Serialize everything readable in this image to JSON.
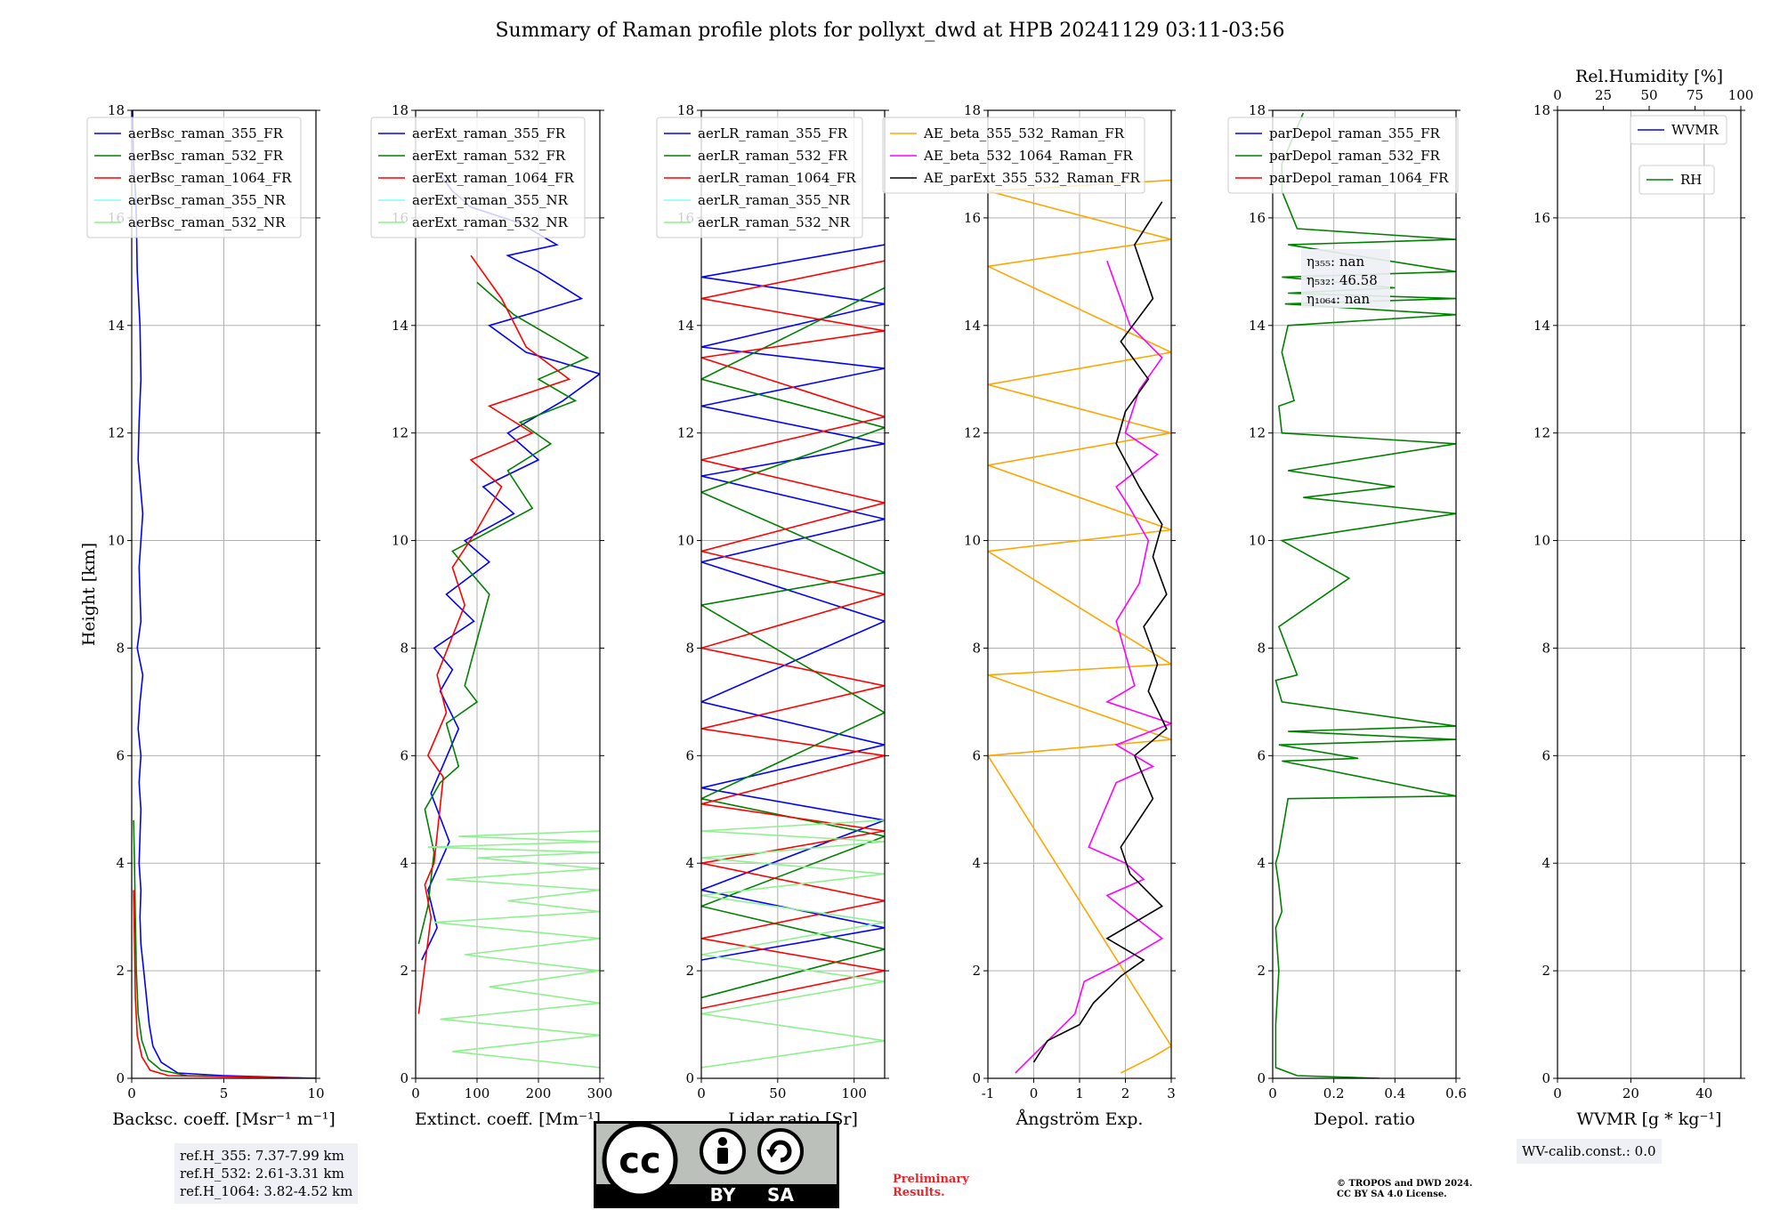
{
  "title": "Summary of Raman profile plots for pollyxt_dwd at HPB 20241129 03:11-03:56",
  "height_axis": {
    "label": "Height [km]",
    "range": [
      0,
      18
    ],
    "ticks": [
      0,
      2,
      4,
      6,
      8,
      10,
      12,
      14,
      16,
      18
    ]
  },
  "chart_data": [
    {
      "type": "line",
      "xlabel": "Backsc. coeff. [Msr⁻¹ m⁻¹]",
      "xlim": [
        0,
        10
      ],
      "xticks": [
        0,
        5,
        10
      ],
      "legend_position": "upper-left",
      "series": [
        {
          "name": "aerBsc_raman_355_FR",
          "color": "#0000ff",
          "x": [
            10.0,
            5.0,
            2.5,
            1.6,
            1.15,
            0.95,
            0.8,
            0.65,
            0.5,
            0.45,
            0.5,
            0.4,
            0.45,
            0.5,
            0.4,
            0.5,
            0.35,
            0.45,
            0.6,
            0.3,
            0.5,
            0.4,
            0.6,
            0.35,
            0.4,
            0.5,
            0.45,
            0.3,
            0.25,
            0.2,
            0.1,
            0.05
          ],
          "y": [
            0.0,
            0.05,
            0.1,
            0.3,
            0.6,
            1.0,
            1.5,
            2.0,
            2.5,
            3.0,
            3.5,
            4.0,
            4.5,
            5.0,
            5.5,
            6.0,
            6.5,
            7.0,
            7.5,
            8.0,
            8.5,
            9.5,
            10.5,
            11.5,
            12.2,
            13.0,
            14.0,
            15.0,
            16.0,
            16.5,
            17.0,
            18.0
          ]
        },
        {
          "name": "aerBsc_raman_532_FR",
          "color": "#008000",
          "x": [
            10.0,
            3.0,
            1.6,
            0.9,
            0.55,
            0.35,
            0.25,
            0.2,
            0.15,
            0.1
          ],
          "y": [
            0.0,
            0.05,
            0.15,
            0.35,
            0.7,
            1.2,
            2.0,
            3.0,
            4.0,
            4.8
          ]
        },
        {
          "name": "aerBsc_raman_1064_FR",
          "color": "#ff0000",
          "x": [
            10.0,
            2.0,
            1.0,
            0.55,
            0.3,
            0.2,
            0.15,
            0.1
          ],
          "y": [
            0.0,
            0.05,
            0.15,
            0.4,
            0.8,
            1.5,
            2.5,
            3.5
          ]
        },
        {
          "name": "aerBsc_raman_355_NR",
          "color": "#7fffff",
          "x": [],
          "y": []
        },
        {
          "name": "aerBsc_raman_532_NR",
          "color": "#8ef08e",
          "x": [],
          "y": []
        }
      ]
    },
    {
      "type": "line",
      "xlabel": "Extinct. coeff. [Mm⁻¹]",
      "xlim": [
        0,
        300
      ],
      "xticks": [
        0,
        100,
        200,
        300
      ],
      "legend_position": "upper-left",
      "series": [
        {
          "name": "aerExt_raman_355_FR",
          "color": "#0000ff",
          "x": [
            10,
            35,
            20,
            55,
            25,
            70,
            40,
            60,
            30,
            95,
            50,
            120,
            80,
            160,
            110,
            200,
            150,
            240,
            300,
            180,
            120,
            270,
            200,
            150,
            230,
            170,
            90,
            60,
            40
          ],
          "y": [
            2.2,
            2.8,
            3.5,
            4.4,
            5.3,
            6.5,
            7.2,
            7.6,
            8.0,
            8.5,
            9.0,
            9.6,
            10.0,
            10.5,
            11.0,
            11.5,
            12.0,
            12.6,
            13.1,
            13.5,
            14.0,
            14.5,
            15.0,
            15.3,
            15.5,
            15.9,
            16.2,
            16.5,
            16.8
          ]
        },
        {
          "name": "aerExt_raman_532_FR",
          "color": "#008000",
          "x": [
            5,
            20,
            30,
            15,
            40,
            70,
            50,
            100,
            80,
            120,
            60,
            190,
            150,
            220,
            170,
            260,
            200,
            280,
            160,
            100
          ],
          "y": [
            2.5,
            3.2,
            4.2,
            5.0,
            5.5,
            5.8,
            6.6,
            7.0,
            7.3,
            9.0,
            9.8,
            10.6,
            11.3,
            11.8,
            12.2,
            12.6,
            13.0,
            13.4,
            14.2,
            14.8
          ]
        },
        {
          "name": "aerExt_raman_1064_FR",
          "color": "#ff0000",
          "x": [
            5,
            25,
            15,
            30,
            45,
            20,
            50,
            35,
            80,
            60,
            100,
            140,
            90,
            190,
            120,
            250,
            180,
            140,
            90
          ],
          "y": [
            1.2,
            3.0,
            3.6,
            4.0,
            5.6,
            6.0,
            6.8,
            7.5,
            8.8,
            9.5,
            10.2,
            11.0,
            11.5,
            12.0,
            12.5,
            13.0,
            13.6,
            14.5,
            15.3
          ]
        },
        {
          "name": "aerExt_raman_355_NR",
          "color": "#7fffff",
          "x": [],
          "y": []
        },
        {
          "name": "aerExt_raman_532_NR",
          "color": "#8ef08e",
          "x": [
            300,
            60,
            300,
            40,
            300,
            120,
            300,
            80,
            300,
            30,
            300,
            150,
            300,
            50,
            300,
            100,
            300,
            20,
            300,
            70,
            300
          ],
          "y": [
            0.2,
            0.5,
            0.8,
            1.1,
            1.4,
            1.7,
            2.0,
            2.3,
            2.6,
            2.9,
            3.1,
            3.3,
            3.5,
            3.7,
            3.9,
            4.1,
            4.2,
            4.3,
            4.4,
            4.5,
            4.6
          ]
        }
      ]
    },
    {
      "type": "line",
      "xlabel": "Lidar ratio [Sr]",
      "xlim": [
        0,
        120
      ],
      "xticks": [
        0,
        50,
        100
      ],
      "legend_position": "upper-left",
      "series": [
        {
          "name": "aerLR_raman_355_FR",
          "color": "#0000ff",
          "x": [
            0,
            120,
            0,
            120,
            0,
            120,
            0,
            120,
            0,
            120,
            0,
            120,
            0,
            120,
            0,
            120,
            0,
            120
          ],
          "y": [
            2.2,
            2.8,
            3.5,
            4.8,
            5.4,
            6.2,
            7.0,
            8.5,
            9.6,
            10.4,
            11.2,
            11.8,
            12.5,
            13.2,
            13.6,
            14.4,
            14.9,
            15.5
          ]
        },
        {
          "name": "aerLR_raman_532_FR",
          "color": "#008000",
          "x": [
            0,
            120,
            0,
            120,
            0,
            120,
            0,
            120,
            0,
            120,
            0,
            120
          ],
          "y": [
            1.5,
            2.4,
            3.2,
            4.5,
            5.2,
            6.8,
            8.8,
            9.4,
            10.9,
            12.1,
            13.0,
            14.7
          ]
        },
        {
          "name": "aerLR_raman_1064_FR",
          "color": "#ff0000",
          "x": [
            0,
            120,
            0,
            120,
            0,
            120,
            0,
            120,
            0,
            120,
            0,
            120,
            0,
            120,
            0,
            120,
            0,
            120,
            0,
            120
          ],
          "y": [
            1.3,
            2.0,
            2.6,
            3.3,
            4.0,
            4.6,
            5.1,
            6.0,
            6.5,
            7.3,
            8.0,
            9.0,
            9.8,
            10.7,
            11.5,
            12.3,
            13.4,
            13.9,
            14.5,
            15.2
          ]
        },
        {
          "name": "aerLR_raman_355_NR",
          "color": "#7fffff",
          "x": [],
          "y": []
        },
        {
          "name": "aerLR_raman_532_NR",
          "color": "#8ef08e",
          "x": [
            0,
            120,
            0,
            120,
            0,
            120,
            0,
            120,
            0,
            120,
            0,
            120
          ],
          "y": [
            0.2,
            0.7,
            1.2,
            1.8,
            2.3,
            2.9,
            3.4,
            3.8,
            4.1,
            4.4,
            4.6,
            4.8
          ]
        }
      ]
    },
    {
      "type": "line",
      "xlabel": "Ångström Exp.",
      "xlim": [
        -1,
        3
      ],
      "xticks": [
        -1,
        0,
        1,
        2,
        3
      ],
      "legend_position": "upper-left",
      "series": [
        {
          "name": "AE_beta_355_532_Raman_FR",
          "color": "#ffa500",
          "x": [
            1.9,
            2.6,
            3.0,
            -1,
            3,
            -1,
            3,
            -1,
            3,
            -1,
            3,
            -1,
            3,
            -1,
            3,
            -1,
            3
          ],
          "y": [
            0.1,
            0.4,
            0.6,
            6.0,
            6.3,
            7.5,
            7.7,
            9.8,
            10.2,
            11.4,
            12.0,
            12.9,
            13.5,
            15.1,
            15.6,
            16.5,
            16.7
          ]
        },
        {
          "name": "AE_beta_532_1064_Raman_FR",
          "color": "#ff00ff",
          "x": [
            -0.4,
            0.9,
            1.1,
            1.8,
            2.8,
            2.2,
            1.6,
            2.4,
            2.0,
            1.2,
            1.8,
            2.6,
            1.8,
            3.0,
            1.6,
            2.2,
            1.8,
            2.3,
            2.5,
            2.1,
            1.8,
            2.7,
            2.0,
            2.3,
            2.8,
            2.1,
            1.6
          ],
          "y": [
            0.1,
            1.2,
            1.8,
            2.1,
            2.6,
            3.0,
            3.4,
            3.7,
            4.0,
            4.3,
            5.5,
            5.8,
            6.2,
            6.6,
            7.0,
            7.3,
            8.5,
            9.2,
            10.0,
            10.6,
            11.0,
            11.6,
            12.0,
            12.8,
            13.4,
            14.0,
            15.2
          ]
        },
        {
          "name": "AE_parExt_355_532_Raman_FR",
          "color": "#000000",
          "x": [
            0.0,
            0.3,
            1.0,
            1.3,
            1.9,
            2.4,
            1.6,
            2.8,
            2.1,
            1.9,
            2.6,
            2.2,
            2.9,
            2.5,
            2.7,
            2.4,
            2.9,
            2.6,
            2.8,
            2.3,
            1.8,
            2.0,
            2.5,
            1.9,
            2.6,
            2.2,
            2.8
          ],
          "y": [
            0.3,
            0.7,
            1.0,
            1.4,
            1.9,
            2.2,
            2.6,
            3.2,
            3.8,
            4.3,
            5.2,
            6.0,
            6.5,
            7.2,
            7.7,
            8.4,
            9.0,
            9.7,
            10.3,
            11.0,
            11.8,
            12.4,
            13.0,
            13.7,
            14.5,
            15.5,
            16.3
          ]
        }
      ],
      "annotations": []
    },
    {
      "type": "line",
      "xlabel": "Depol. ratio",
      "xlim": [
        0.0,
        0.6
      ],
      "xticks": [
        0.0,
        0.2,
        0.4,
        0.6
      ],
      "legend_position": "upper-left",
      "annotations": [
        "η₃₅₅: nan",
        "η₅₃₂: 46.58",
        "η₁₀₆₄: nan"
      ],
      "series": [
        {
          "name": "parDepol_raman_355_FR",
          "color": "#0000ff",
          "x": [],
          "y": []
        },
        {
          "name": "parDepol_raman_532_FR",
          "color": "#008000",
          "x": [
            0.35,
            0.08,
            0.01,
            0.01,
            0.02,
            0.01,
            0.03,
            0.02,
            0.01,
            0.02,
            0.05,
            0.6,
            0.03,
            0.28,
            0.02,
            0.6,
            0.05,
            0.6,
            0.03,
            0.01,
            0.08,
            0.02,
            0.25,
            0.03,
            0.6,
            0.1,
            0.4,
            0.05,
            0.6,
            0.03,
            0.02,
            0.07,
            0.03,
            0.05,
            0.6,
            0.04,
            0.6,
            0.05,
            0.4,
            0.03,
            0.6,
            0.05,
            0.6,
            0.08,
            0.03,
            0.03,
            0.1
          ],
          "y": [
            0.0,
            0.05,
            0.2,
            1.0,
            2.0,
            2.8,
            3.1,
            3.6,
            4.0,
            4.2,
            5.2,
            5.25,
            5.9,
            5.95,
            6.2,
            6.3,
            6.45,
            6.55,
            7.0,
            7.4,
            7.5,
            8.4,
            9.3,
            10.0,
            10.5,
            10.8,
            11.0,
            11.3,
            11.8,
            12.0,
            12.5,
            12.6,
            13.5,
            14.0,
            14.2,
            14.4,
            14.5,
            14.6,
            14.7,
            14.9,
            15.0,
            15.5,
            15.6,
            15.8,
            16.5,
            17.0,
            17.95
          ]
        },
        {
          "name": "parDepol_raman_1064_FR",
          "color": "#ff0000",
          "x": [],
          "y": []
        }
      ]
    },
    {
      "type": "line",
      "xlabel": "WVMR [g * kg⁻¹]",
      "xlim": [
        0,
        50
      ],
      "xticks": [
        0,
        20,
        40
      ],
      "secondary_xlabel": "Rel.Humidity [%]",
      "secondary_xlim": [
        0,
        100
      ],
      "secondary_xticks": [
        0,
        25,
        50,
        75,
        100
      ],
      "series": [
        {
          "name": "WVMR",
          "color": "#0000ff",
          "x": [],
          "y": []
        },
        {
          "name": "RH",
          "color": "#008000",
          "x": [],
          "y": []
        }
      ]
    }
  ],
  "reference_heights": [
    "ref.H_355: 7.37-7.99 km",
    "ref.H_532: 2.61-3.31 km",
    "ref.H_1064: 3.82-4.52 km"
  ],
  "wv_calib": "WV-calib.const.: 0.0",
  "preliminary": [
    "Preliminary",
    "Results."
  ],
  "copyright": [
    "© TROPOS and DWD 2024.",
    "CC BY SA 4.0 License."
  ],
  "license_badge": {
    "labels": [
      "BY",
      "SA"
    ],
    "logo_text": "cc"
  }
}
